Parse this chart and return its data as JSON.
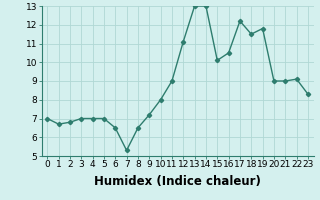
{
  "x": [
    0,
    1,
    2,
    3,
    4,
    5,
    6,
    7,
    8,
    9,
    10,
    11,
    12,
    13,
    14,
    15,
    16,
    17,
    18,
    19,
    20,
    21,
    22,
    23
  ],
  "y": [
    7.0,
    6.7,
    6.8,
    7.0,
    7.0,
    7.0,
    6.5,
    5.3,
    6.5,
    7.2,
    8.0,
    9.0,
    11.1,
    13.0,
    13.0,
    10.1,
    10.5,
    12.2,
    11.5,
    11.8,
    9.0,
    9.0,
    9.1,
    8.3
  ],
  "xlabel": "Humidex (Indice chaleur)",
  "ylim": [
    5,
    13
  ],
  "yticks": [
    5,
    6,
    7,
    8,
    9,
    10,
    11,
    12,
    13
  ],
  "xticks": [
    0,
    1,
    2,
    3,
    4,
    5,
    6,
    7,
    8,
    9,
    10,
    11,
    12,
    13,
    14,
    15,
    16,
    17,
    18,
    19,
    20,
    21,
    22,
    23
  ],
  "xtick_labels": [
    "0",
    "1",
    "2",
    "3",
    "4",
    "5",
    "6",
    "7",
    "8",
    "9",
    "10",
    "11",
    "12",
    "13",
    "14",
    "15",
    "16",
    "17",
    "18",
    "19",
    "20",
    "21",
    "22",
    "23"
  ],
  "line_color": "#2e7d6e",
  "marker": "D",
  "marker_size": 2.2,
  "bg_color": "#d4f0ee",
  "grid_color": "#b0d8d4",
  "line_width": 1.0,
  "tick_label_fontsize": 6.5,
  "xlabel_fontsize": 8.5
}
